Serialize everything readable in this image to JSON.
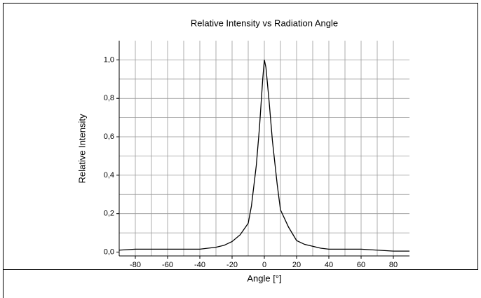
{
  "chart_data": {
    "type": "line",
    "title": "Relative Intensity vs Radiation Angle",
    "x_label": "Angle [°]",
    "y_label": "Relative  Intensity",
    "series": [
      {
        "name": "Relative Intensity",
        "color": "#000000",
        "x": [
          -90,
          -80,
          -70,
          -60,
          -50,
          -40,
          -30,
          -25,
          -20,
          -15,
          -10,
          -8,
          -5,
          -3,
          -1,
          0,
          1,
          3,
          5,
          8,
          10,
          15,
          20,
          25,
          30,
          35,
          40,
          50,
          60,
          70,
          80,
          90
        ],
        "values": [
          0.01,
          0.015,
          0.015,
          0.015,
          0.015,
          0.015,
          0.025,
          0.035,
          0.055,
          0.09,
          0.15,
          0.24,
          0.45,
          0.65,
          0.9,
          1.0,
          0.96,
          0.78,
          0.58,
          0.35,
          0.22,
          0.13,
          0.06,
          0.04,
          0.03,
          0.02,
          0.015,
          0.015,
          0.015,
          0.01,
          0.005,
          0.005
        ]
      }
    ],
    "xlim": [
      -90,
      90
    ],
    "ylim": [
      -0.02,
      1.1
    ],
    "xticks": [
      -80,
      -60,
      -40,
      -20,
      0,
      20,
      40,
      60,
      80
    ],
    "yticks": [
      {
        "value": 0,
        "label": "0,0"
      },
      {
        "value": 0.2,
        "label": "0,2"
      },
      {
        "value": 0.4,
        "label": "0,4"
      },
      {
        "value": 0.6,
        "label": "0,6"
      },
      {
        "value": 0.8,
        "label": "0,8"
      },
      {
        "value": 1.0,
        "label": "1,0"
      }
    ],
    "xgrid": [
      -80,
      -70,
      -60,
      -50,
      -40,
      -30,
      -20,
      -10,
      0,
      10,
      20,
      30,
      40,
      50,
      60,
      70,
      80
    ],
    "ygrid": [
      0.1,
      0.2,
      0.3,
      0.4,
      0.5,
      0.6,
      0.7,
      0.8,
      0.9,
      1.0
    ],
    "grid": true
  }
}
